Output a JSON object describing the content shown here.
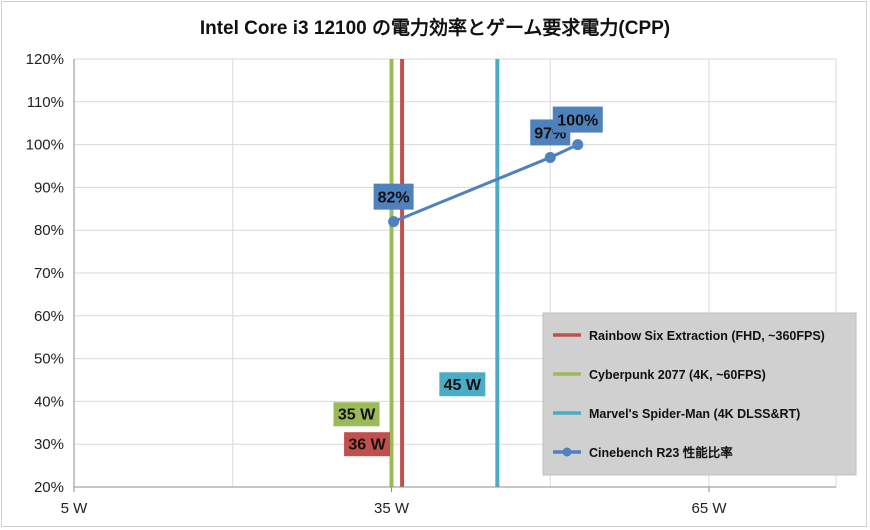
{
  "chart_data": {
    "type": "line",
    "title": "Intel Core i3 12100 の電力効率とゲーム要求電力(CPP)",
    "xlim": [
      5,
      77
    ],
    "ylim": [
      20,
      120
    ],
    "x_ticks": [
      {
        "value": 5,
        "label": "5 W"
      },
      {
        "value": 35,
        "label": "35 W"
      },
      {
        "value": 65,
        "label": "65 W"
      }
    ],
    "x_minor_grid": [
      20,
      50
    ],
    "y_ticks": [
      20,
      30,
      40,
      50,
      60,
      70,
      80,
      90,
      100,
      110,
      120
    ],
    "y_tick_suffix": "%",
    "grid": true,
    "legend_position": "bottom-right",
    "vertical_lines": [
      {
        "name": "Rainbow Six Extraction (FHD, ~360FPS)",
        "x": 36,
        "label": "36 W",
        "label_y": 30,
        "color": "#c0504d"
      },
      {
        "name": "Cyberpunk 2077 (4K, ~60FPS)",
        "x": 35,
        "label": "35 W",
        "label_y": 37,
        "color": "#9bbb59"
      },
      {
        "name": "Marvel's Spider-Man (4K DLSS&RT)",
        "x": 45,
        "label": "45 W",
        "label_y": 44,
        "color": "#4bacc6"
      }
    ],
    "series": [
      {
        "name": "Cinebench R23 性能比率",
        "color": "#4f81bd",
        "points": [
          {
            "x": 35.2,
            "y": 82,
            "label": "82%"
          },
          {
            "x": 50.0,
            "y": 97,
            "label": "97%"
          },
          {
            "x": 52.6,
            "y": 100,
            "label": "100%"
          }
        ]
      }
    ]
  }
}
